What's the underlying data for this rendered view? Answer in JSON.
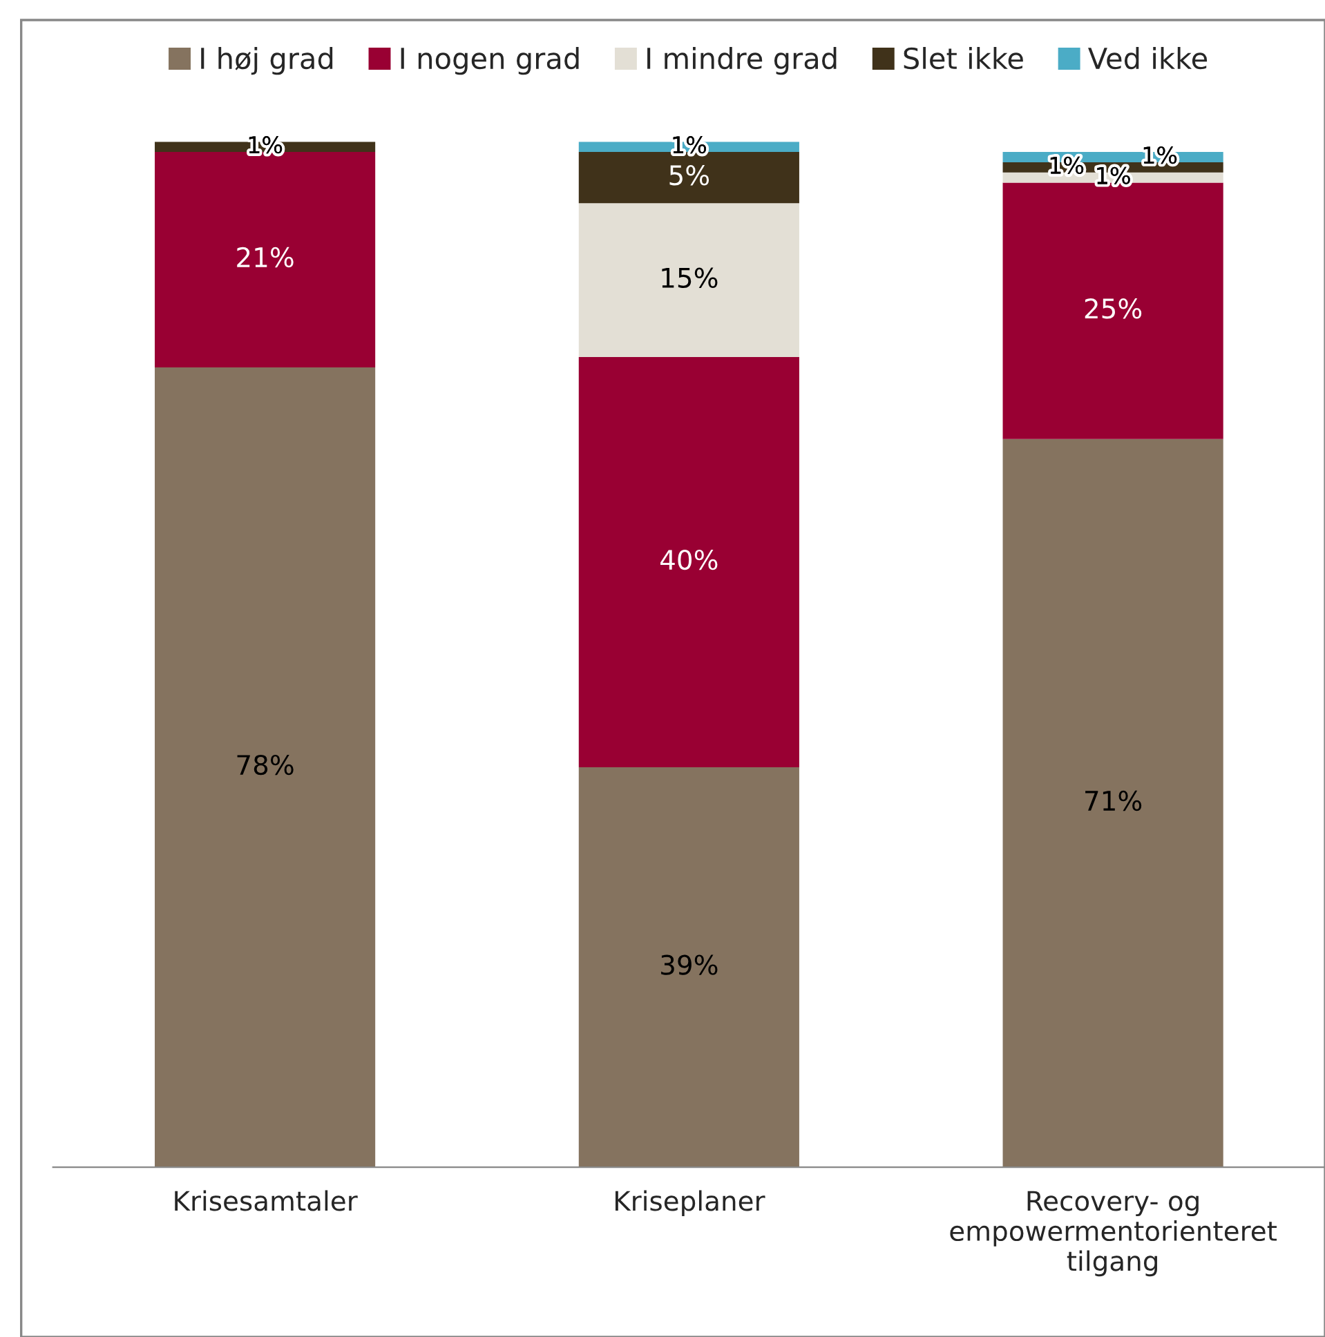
{
  "chart_data": {
    "type": "bar",
    "stacked": true,
    "legend": "top",
    "grid": false,
    "categories": [
      "Krisesamtaler",
      "Kriseplaner",
      "Recovery- og\nempowermentorienteret\ntilgang"
    ],
    "series": [
      {
        "name": "I høj grad",
        "color": "#85735f",
        "values": [
          78,
          39,
          71
        ],
        "value_labels": [
          "78%",
          "39%",
          "71%"
        ]
      },
      {
        "name": "I nogen grad",
        "color": "#990033",
        "values": [
          21,
          40,
          25
        ],
        "value_labels": [
          "21%",
          "40%",
          "25%"
        ]
      },
      {
        "name": "I mindre grad",
        "color": "#e3dfd5",
        "values": [
          null,
          15,
          1
        ],
        "value_labels": [
          null,
          "15%",
          "1%"
        ]
      },
      {
        "name": "Slet ikke",
        "color": "#40321a",
        "values": [
          1,
          5,
          1
        ],
        "value_labels": [
          "1%",
          "5%",
          "1%"
        ]
      },
      {
        "name": "Ved ikke",
        "color": "#4bacc6",
        "values": [
          null,
          1,
          1
        ],
        "value_labels": [
          null,
          "1%",
          "1%"
        ]
      }
    ]
  }
}
